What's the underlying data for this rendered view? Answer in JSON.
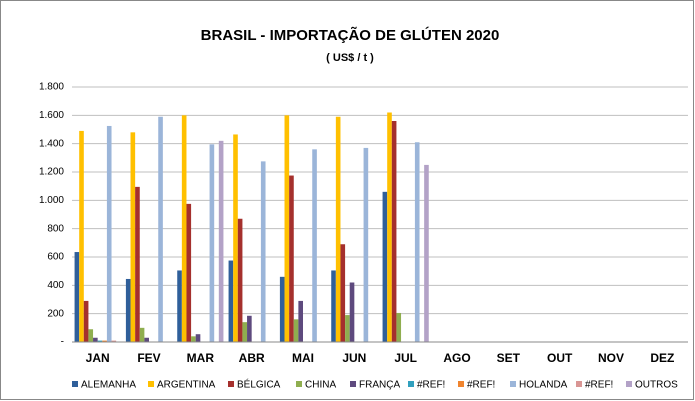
{
  "chart_data": {
    "type": "bar",
    "title": "BRASIL - IMPORTAÇÃO DE GLÚTEN 2020",
    "subtitle": "( US$ / t )",
    "categories": [
      "JAN",
      "FEV",
      "MAR",
      "ABR",
      "MAI",
      "JUN",
      "JUL",
      "AGO",
      "SET",
      "OUT",
      "NOV",
      "DEZ"
    ],
    "series": [
      {
        "name": "ALEMANHA",
        "color": "#2f5f9a",
        "values": [
          635,
          445,
          505,
          575,
          460,
          505,
          1060,
          null,
          null,
          null,
          null,
          null
        ]
      },
      {
        "name": "ARGENTINA",
        "color": "#ffc000",
        "values": [
          1490,
          1480,
          1600,
          1465,
          1600,
          1590,
          1620,
          null,
          null,
          null,
          null,
          null
        ]
      },
      {
        "name": "BÉLGICA",
        "color": "#a5302d",
        "values": [
          290,
          1095,
          975,
          870,
          1175,
          690,
          1560,
          null,
          null,
          null,
          null,
          null
        ]
      },
      {
        "name": "CHINA",
        "color": "#8fae4f",
        "values": [
          90,
          100,
          40,
          140,
          160,
          190,
          205,
          null,
          null,
          null,
          null,
          null
        ]
      },
      {
        "name": "FRANÇA",
        "color": "#5e4a7e",
        "values": [
          30,
          30,
          55,
          185,
          290,
          420,
          null,
          null,
          null,
          null,
          null,
          null
        ]
      },
      {
        "name": "#REF!",
        "color": "#31a0be",
        "values": [
          10,
          null,
          null,
          null,
          null,
          null,
          null,
          null,
          null,
          null,
          null,
          null
        ]
      },
      {
        "name": "#REF!",
        "color": "#f0842e",
        "values": [
          10,
          null,
          null,
          null,
          null,
          null,
          null,
          null,
          null,
          null,
          null,
          null
        ]
      },
      {
        "name": "HOLANDA",
        "color": "#9bb5d9",
        "values": [
          1525,
          1590,
          1395,
          1275,
          1360,
          1370,
          1410,
          null,
          null,
          null,
          null,
          null
        ]
      },
      {
        "name": "#REF!",
        "color": "#d99694",
        "values": [
          10,
          null,
          null,
          null,
          null,
          null,
          null,
          null,
          null,
          null,
          null,
          null
        ]
      },
      {
        "name": "OUTROS",
        "color": "#b3a2c7",
        "values": [
          null,
          null,
          1420,
          null,
          null,
          null,
          1250,
          null,
          null,
          null,
          null,
          null
        ]
      }
    ],
    "ylim": [
      0,
      1800
    ],
    "yticks": [
      {
        "value": 0,
        "label": "-"
      },
      200,
      400,
      600,
      800,
      {
        "value": 1000,
        "label": "1.000"
      },
      {
        "value": 1200,
        "label": "1.200"
      },
      {
        "value": 1400,
        "label": "1.400"
      },
      {
        "value": 1600,
        "label": "1.600"
      },
      {
        "value": 1800,
        "label": "1.800"
      }
    ],
    "grid": true
  }
}
